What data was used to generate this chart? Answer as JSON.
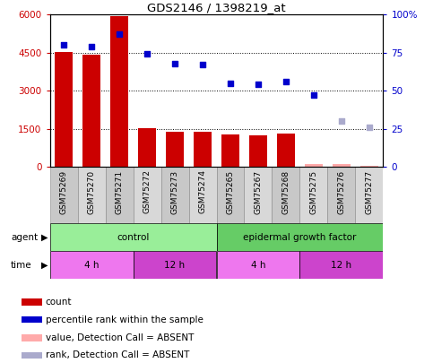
{
  "title": "GDS2146 / 1398219_at",
  "samples": [
    "GSM75269",
    "GSM75270",
    "GSM75271",
    "GSM75272",
    "GSM75273",
    "GSM75274",
    "GSM75265",
    "GSM75267",
    "GSM75268",
    "GSM75275",
    "GSM75276",
    "GSM75277"
  ],
  "bar_values": [
    4530,
    4430,
    5930,
    1520,
    1390,
    1370,
    1270,
    1240,
    1320,
    130,
    110,
    30
  ],
  "bar_absent": [
    false,
    false,
    false,
    false,
    false,
    false,
    false,
    false,
    false,
    true,
    true,
    true
  ],
  "rank_values": [
    80,
    79,
    87,
    74,
    68,
    67,
    55,
    54,
    56,
    47,
    30,
    26
  ],
  "rank_absent": [
    false,
    false,
    false,
    false,
    false,
    false,
    false,
    false,
    false,
    false,
    true,
    true
  ],
  "bar_color": "#cc0000",
  "bar_absent_color": "#ffaaaa",
  "rank_color": "#0000cc",
  "rank_absent_color": "#aaaacc",
  "ylim_left": [
    0,
    6000
  ],
  "ylim_right": [
    0,
    100
  ],
  "yticks_left": [
    0,
    1500,
    3000,
    4500,
    6000
  ],
  "yticks_right": [
    0,
    25,
    50,
    75,
    100
  ],
  "yticklabels_right": [
    "0",
    "25",
    "50",
    "75",
    "100%"
  ],
  "agent_groups": [
    {
      "label": "control",
      "start": 0,
      "end": 6,
      "color": "#99ee99"
    },
    {
      "label": "epidermal growth factor",
      "start": 6,
      "end": 12,
      "color": "#66cc66"
    }
  ],
  "time_groups": [
    {
      "label": "4 h",
      "start": 0,
      "end": 3,
      "color": "#ee77ee"
    },
    {
      "label": "12 h",
      "start": 3,
      "end": 6,
      "color": "#cc44cc"
    },
    {
      "label": "4 h",
      "start": 6,
      "end": 9,
      "color": "#ee77ee"
    },
    {
      "label": "12 h",
      "start": 9,
      "end": 12,
      "color": "#cc44cc"
    }
  ],
  "legend_items": [
    {
      "label": "count",
      "color": "#cc0000"
    },
    {
      "label": "percentile rank within the sample",
      "color": "#0000cc"
    },
    {
      "label": "value, Detection Call = ABSENT",
      "color": "#ffaaaa"
    },
    {
      "label": "rank, Detection Call = ABSENT",
      "color": "#aaaacc"
    }
  ],
  "background_color": "#ffffff",
  "tick_label_color_left": "#cc0000",
  "tick_label_color_right": "#0000cc",
  "xtick_bg_color": "#cccccc"
}
